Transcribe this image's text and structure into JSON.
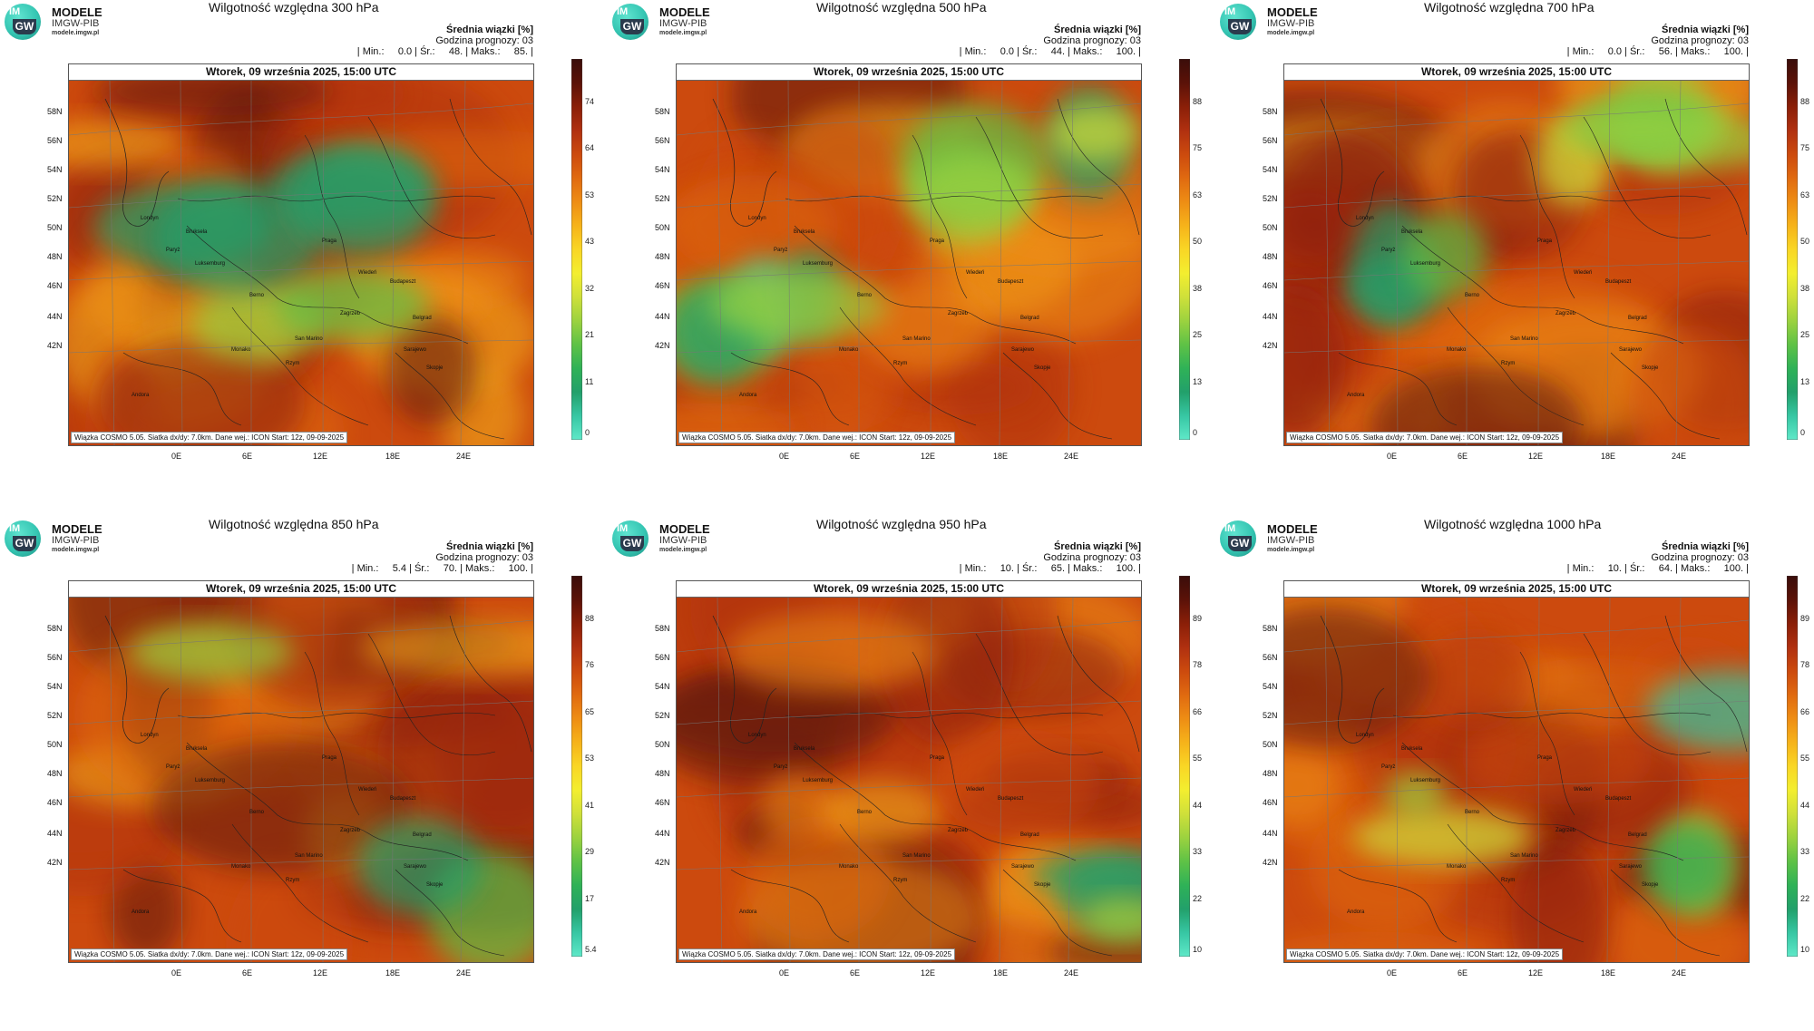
{
  "logo": {
    "brand_top": "IM",
    "brand_bottom": "GW",
    "name": "MODELE",
    "org": "IMGW-PIB",
    "site": "modele.imgw.pl"
  },
  "common": {
    "subtitle_1": "Średnia wiązki [%]",
    "subtitle_2": "Godzina prognozy: 03",
    "map_header": "Wtorek, 09 września 2025, 15:00 UTC",
    "footer": "Wiązka COSMO 5.05. Siatka dx/dy: 7.0km. Dane wej.: ICON Start: 12z, 09-09-2025",
    "lat_labels": [
      "58N",
      "56N",
      "54N",
      "52N",
      "50N",
      "48N",
      "46N",
      "44N",
      "42N"
    ],
    "lon_labels": [
      "0E",
      "6E",
      "12E",
      "18E",
      "24E"
    ],
    "cities": [
      "Londyn",
      "Bruksela",
      "Paryż",
      "Luksemburg",
      "Praga",
      "Wiedeń",
      "Budapeszt",
      "Berno",
      "Zagrzeb",
      "Belgrad",
      "San Marino",
      "Sarajewo",
      "Monako",
      "Rzym",
      "Skopje",
      "Andora"
    ]
  },
  "panels": [
    {
      "title": "Wilgotność względna 300 hPa",
      "stats": "| Min.:     0.0 | Śr.:     48. | Maks.:     85. |",
      "min": 0.0,
      "mean": 48,
      "max": 85,
      "ticks": [
        "74",
        "64",
        "53",
        "43",
        "32",
        "21",
        "11",
        "0"
      ]
    },
    {
      "title": "Wilgotność względna 500 hPa",
      "stats": "| Min.:     0.0 | Śr.:     44. | Maks.:     100. |",
      "min": 0.0,
      "mean": 44,
      "max": 100,
      "ticks": [
        "88",
        "75",
        "63",
        "50",
        "38",
        "25",
        "13",
        "0"
      ]
    },
    {
      "title": "Wilgotność względna 700 hPa",
      "stats": "| Min.:     0.0 | Śr.:     56. | Maks.:     100. |",
      "min": 0.0,
      "mean": 56,
      "max": 100,
      "ticks": [
        "88",
        "75",
        "63",
        "50",
        "38",
        "25",
        "13",
        "0"
      ]
    },
    {
      "title": "Wilgotność względna 850 hPa",
      "stats": "| Min.:     5.4 | Śr.:     70. | Maks.:     100. |",
      "min": 5.4,
      "mean": 70,
      "max": 100,
      "ticks": [
        "88",
        "76",
        "65",
        "53",
        "41",
        "29",
        "17",
        "5.4"
      ]
    },
    {
      "title": "Wilgotność względna 950 hPa",
      "stats": "| Min.:     10. | Śr.:     65. | Maks.:     100. |",
      "min": 10,
      "mean": 65,
      "max": 100,
      "ticks": [
        "89",
        "78",
        "66",
        "55",
        "44",
        "33",
        "22",
        "10"
      ]
    },
    {
      "title": "Wilgotność względna 1000 hPa",
      "stats": "| Min.:     10. | Śr.:     64. | Maks.:     100. |",
      "min": 10,
      "mean": 64,
      "max": 100,
      "ticks": [
        "89",
        "78",
        "66",
        "55",
        "44",
        "33",
        "22",
        "10"
      ]
    }
  ],
  "colors": {
    "colorbar": [
      "#3a0d0a",
      "#5b1208",
      "#8a1f08",
      "#b03010",
      "#cc4a0e",
      "#e06a10",
      "#ee8d14",
      "#f6b31a",
      "#f9d625",
      "#f3ee2f",
      "#cfe03a",
      "#9bd23f",
      "#5fc246",
      "#2fb257",
      "#22a06b",
      "#37c7a4",
      "#5fe8c8"
    ],
    "dry_green": "#3fbf6a",
    "moist_dark": "#4a0f08"
  }
}
